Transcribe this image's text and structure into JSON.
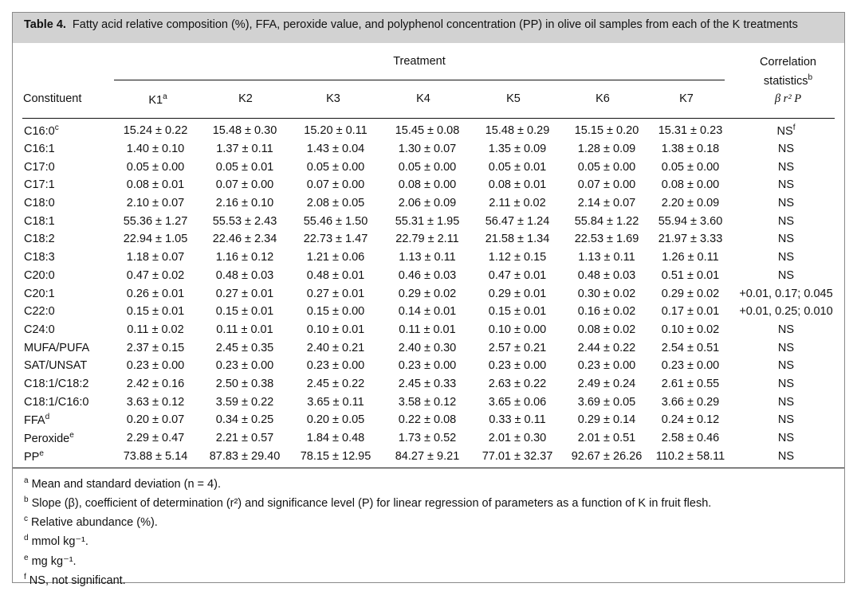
{
  "caption": {
    "label": "Table 4.",
    "text": "Fatty acid relative composition (%), FFA, peroxide value, and polyphenol concentration (PP) in olive oil samples from each of the K treatments"
  },
  "headers": {
    "constituent": "Constituent",
    "treatment": "Treatment",
    "correlation": "Correlation statistics",
    "correlation_sup": "b",
    "correlation_sub": "β r² P",
    "k1": "K1",
    "k1_sup": "a",
    "k2": "K2",
    "k3": "K3",
    "k4": "K4",
    "k5": "K5",
    "k6": "K6",
    "k7": "K7"
  },
  "rows": [
    {
      "name": "C16:0",
      "sup": "c",
      "values": [
        "15.24 ± 0.22",
        "15.48 ± 0.30",
        "15.20 ± 0.11",
        "15.45 ± 0.08",
        "15.48 ± 0.29",
        "15.15 ± 0.20",
        "15.31 ± 0.23"
      ],
      "corr": "NS",
      "corr_sup": "f"
    },
    {
      "name": "C16:1",
      "sup": "",
      "values": [
        "1.40 ± 0.10",
        "1.37 ± 0.11",
        "1.43 ± 0.04",
        "1.30 ± 0.07",
        "1.35 ± 0.09",
        "1.28 ± 0.09",
        "1.38 ± 0.18"
      ],
      "corr": "NS",
      "corr_sup": ""
    },
    {
      "name": "C17:0",
      "sup": "",
      "values": [
        "0.05 ± 0.00",
        "0.05 ± 0.01",
        "0.05 ± 0.00",
        "0.05 ± 0.00",
        "0.05 ± 0.01",
        "0.05 ± 0.00",
        "0.05 ± 0.00"
      ],
      "corr": "NS",
      "corr_sup": ""
    },
    {
      "name": "C17:1",
      "sup": "",
      "values": [
        "0.08 ± 0.01",
        "0.07 ± 0.00",
        "0.07 ± 0.00",
        "0.08 ± 0.00",
        "0.08 ± 0.01",
        "0.07 ± 0.00",
        "0.08 ± 0.00"
      ],
      "corr": "NS",
      "corr_sup": ""
    },
    {
      "name": "C18:0",
      "sup": "",
      "values": [
        "2.10 ± 0.07",
        "2.16 ± 0.10",
        "2.08 ± 0.05",
        "2.06 ± 0.09",
        "2.11 ± 0.02",
        "2.14 ± 0.07",
        "2.20 ± 0.09"
      ],
      "corr": "NS",
      "corr_sup": ""
    },
    {
      "name": "C18:1",
      "sup": "",
      "values": [
        "55.36 ± 1.27",
        "55.53 ± 2.43",
        "55.46 ± 1.50",
        "55.31 ± 1.95",
        "56.47 ± 1.24",
        "55.84 ± 1.22",
        "55.94 ± 3.60"
      ],
      "corr": "NS",
      "corr_sup": ""
    },
    {
      "name": "C18:2",
      "sup": "",
      "values": [
        "22.94 ± 1.05",
        "22.46 ± 2.34",
        "22.73 ± 1.47",
        "22.79 ± 2.11",
        "21.58 ± 1.34",
        "22.53 ± 1.69",
        "21.97 ± 3.33"
      ],
      "corr": "NS",
      "corr_sup": ""
    },
    {
      "name": "C18:3",
      "sup": "",
      "values": [
        "1.18 ± 0.07",
        "1.16 ± 0.12",
        "1.21 ± 0.06",
        "1.13 ± 0.11",
        "1.12 ± 0.15",
        "1.13 ± 0.11",
        "1.26 ± 0.11"
      ],
      "corr": "NS",
      "corr_sup": ""
    },
    {
      "name": "C20:0",
      "sup": "",
      "values": [
        "0.47 ± 0.02",
        "0.48 ± 0.03",
        "0.48 ± 0.01",
        "0.46 ± 0.03",
        "0.47 ± 0.01",
        "0.48 ± 0.03",
        "0.51 ± 0.01"
      ],
      "corr": "NS",
      "corr_sup": ""
    },
    {
      "name": "C20:1",
      "sup": "",
      "values": [
        "0.26 ± 0.01",
        "0.27 ± 0.01",
        "0.27 ± 0.01",
        "0.29 ± 0.02",
        "0.29 ± 0.01",
        "0.30 ± 0.02",
        "0.29 ± 0.02"
      ],
      "corr": "+0.01, 0.17; 0.045",
      "corr_sup": ""
    },
    {
      "name": "C22:0",
      "sup": "",
      "values": [
        "0.15 ± 0.01",
        "0.15 ± 0.01",
        "0.15 ± 0.00",
        "0.14 ± 0.01",
        "0.15 ± 0.01",
        "0.16 ± 0.02",
        "0.17 ± 0.01"
      ],
      "corr": "+0.01, 0.25; 0.010",
      "corr_sup": ""
    },
    {
      "name": "C24:0",
      "sup": "",
      "values": [
        "0.11 ± 0.02",
        "0.11 ± 0.01",
        "0.10 ± 0.01",
        "0.11 ± 0.01",
        "0.10 ± 0.00",
        "0.08 ± 0.02",
        "0.10 ± 0.02"
      ],
      "corr": "NS",
      "corr_sup": ""
    },
    {
      "name": "MUFA/PUFA",
      "sup": "",
      "values": [
        "2.37 ± 0.15",
        "2.45 ± 0.35",
        "2.40 ± 0.21",
        "2.40 ± 0.30",
        "2.57 ± 0.21",
        "2.44 ± 0.22",
        "2.54 ± 0.51"
      ],
      "corr": "NS",
      "corr_sup": ""
    },
    {
      "name": "SAT/UNSAT",
      "sup": "",
      "values": [
        "0.23 ± 0.00",
        "0.23 ± 0.00",
        "0.23 ± 0.00",
        "0.23 ± 0.00",
        "0.23 ± 0.00",
        "0.23 ± 0.00",
        "0.23 ± 0.00"
      ],
      "corr": "NS",
      "corr_sup": ""
    },
    {
      "name": "C18:1/C18:2",
      "sup": "",
      "values": [
        "2.42 ± 0.16",
        "2.50 ± 0.38",
        "2.45 ± 0.22",
        "2.45 ± 0.33",
        "2.63 ± 0.22",
        "2.49 ± 0.24",
        "2.61 ± 0.55"
      ],
      "corr": "NS",
      "corr_sup": ""
    },
    {
      "name": "C18:1/C16:0",
      "sup": "",
      "values": [
        "3.63 ± 0.12",
        "3.59 ± 0.22",
        "3.65 ± 0.11",
        "3.58 ± 0.12",
        "3.65 ± 0.06",
        "3.69 ± 0.05",
        "3.66 ± 0.29"
      ],
      "corr": "NS",
      "corr_sup": ""
    },
    {
      "name": "FFA",
      "sup": "d",
      "values": [
        "0.20 ± 0.07",
        "0.34 ± 0.25",
        "0.20 ± 0.05",
        "0.22 ± 0.08",
        "0.33 ± 0.11",
        "0.29 ± 0.14",
        "0.24 ± 0.12"
      ],
      "corr": "NS",
      "corr_sup": ""
    },
    {
      "name": "Peroxide",
      "sup": "e",
      "values": [
        "2.29 ± 0.47",
        "2.21 ± 0.57",
        "1.84 ± 0.48",
        "1.73 ± 0.52",
        "2.01 ± 0.30",
        "2.01 ± 0.51",
        "2.58 ± 0.46"
      ],
      "corr": "NS",
      "corr_sup": ""
    },
    {
      "name": "PP",
      "sup": "e",
      "values": [
        "73.88 ± 5.14",
        "87.83 ± 29.40",
        "78.15 ± 12.95",
        "84.27 ± 9.21",
        "77.01 ± 32.37",
        "92.67 ± 26.26",
        "110.2 ± 58.11"
      ],
      "corr": "NS",
      "corr_sup": ""
    }
  ],
  "footnotes": [
    {
      "mark": "a",
      "text": "Mean and standard deviation (n = 4)."
    },
    {
      "mark": "b",
      "text": "Slope (β), coefficient of determination (r²) and significance level (P) for linear regression of parameters as a function of K in fruit flesh."
    },
    {
      "mark": "c",
      "text": "Relative abundance (%)."
    },
    {
      "mark": "d",
      "text": "mmol kg⁻¹."
    },
    {
      "mark": "e",
      "text": "mg kg⁻¹."
    },
    {
      "mark": "f",
      "text": "NS, not significant."
    }
  ]
}
